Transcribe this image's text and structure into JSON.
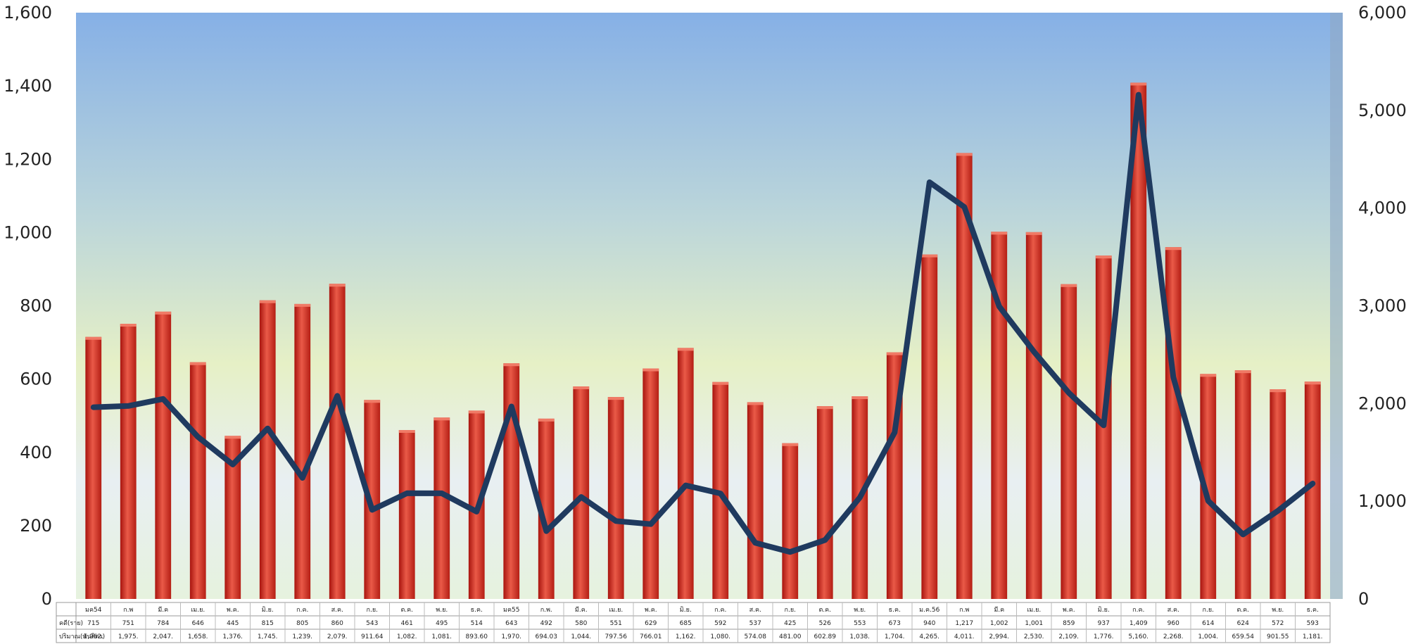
{
  "chart_data": {
    "type": "bar",
    "title": "",
    "xlabel": "",
    "ylabel": "",
    "ylim": [
      0,
      1600
    ],
    "y2lim": [
      0,
      6000
    ],
    "yticks": [
      "0",
      "200",
      "400",
      "600",
      "800",
      "1,000",
      "1,200",
      "1,400",
      "1,600"
    ],
    "y2ticks": [
      "0",
      "1,000",
      "2,000",
      "3,000",
      "4,000",
      "5,000",
      "6,000"
    ],
    "grid": false,
    "legend": "none",
    "categories": [
      "มค54",
      "ก.พ",
      "มี.ค",
      "เม.ย.",
      "พ.ค.",
      "มิ.ย.",
      "ก.ค.",
      "ส.ค.",
      "ก.ย.",
      "ต.ค.",
      "พ.ย.",
      "ธ.ค.",
      "มค55",
      "ก.พ.",
      "มี.ค.",
      "เม.ย.",
      "พ.ค.",
      "มิ.ย.",
      "ก.ค.",
      "ส.ค.",
      "ก.ย.",
      "ต.ค.",
      "พ.ย.",
      "ธ.ค.",
      "ม.ค.56",
      "ก.พ",
      "มี.ค",
      "เม.ย.",
      "พ.ค.",
      "มิ.ย.",
      "ก.ค.",
      "ส.ค.",
      "ก.ย.",
      "ต.ค.",
      "พ.ย.",
      "ธ.ค."
    ],
    "series": [
      {
        "name": "คดี(ราย)",
        "type": "bar",
        "axis": "left",
        "values": [
          715,
          751,
          784,
          646,
          445,
          815,
          805,
          860,
          543,
          461,
          495,
          514,
          643,
          492,
          580,
          551,
          629,
          685,
          592,
          537,
          425,
          526,
          553,
          673,
          940,
          1217,
          1002,
          1001,
          859,
          937,
          1409,
          960,
          614,
          624,
          572,
          593
        ],
        "labels": [
          "715",
          "751",
          "784",
          "646",
          "445",
          "815",
          "805",
          "860",
          "543",
          "461",
          "495",
          "514",
          "643",
          "492",
          "580",
          "551",
          "629",
          "685",
          "592",
          "537",
          "425",
          "526",
          "553",
          "673",
          "940",
          "1,217",
          "1,002",
          "1,001",
          "859",
          "937",
          "1,409",
          "960",
          "614",
          "624",
          "572",
          "593"
        ]
      },
      {
        "name": "ปริมาณ(พันลิตร)",
        "type": "line",
        "axis": "right",
        "values": [
          1962,
          1975,
          2047,
          1658,
          1376,
          1745,
          1239,
          2079,
          911.64,
          1082,
          1081,
          893.6,
          1970,
          694.03,
          1044,
          797.56,
          766.01,
          1162,
          1080,
          574.08,
          481,
          602.89,
          1038,
          1704,
          4265,
          4011,
          2994,
          2530,
          2109,
          1776,
          5160,
          2268,
          1004,
          659.54,
          901.55,
          1181
        ],
        "labels": [
          "1,962.",
          "1,975.",
          "2,047.",
          "1,658.",
          "1,376.",
          "1,745.",
          "1,239.",
          "2,079.",
          "911.64",
          "1,082.",
          "1,081.",
          "893.60",
          "1,970.",
          "694.03",
          "1,044.",
          "797.56",
          "766.01",
          "1,162.",
          "1,080.",
          "574.08",
          "481.00",
          "602.89",
          "1,038.",
          "1,704.",
          "4,265.",
          "4,011.",
          "2,994.",
          "2,530.",
          "2,109.",
          "1,776.",
          "5,160.",
          "2,268.",
          "1,004.",
          "659.54",
          "901.55",
          "1,181."
        ]
      }
    ]
  },
  "colors": {
    "bar_fill": "#d63a2e",
    "line": "#1f3a5f",
    "bg_top": "#8fb4e8",
    "bg_mid": "#e8f0c8",
    "bg_bottom": "#eaf2e6"
  }
}
